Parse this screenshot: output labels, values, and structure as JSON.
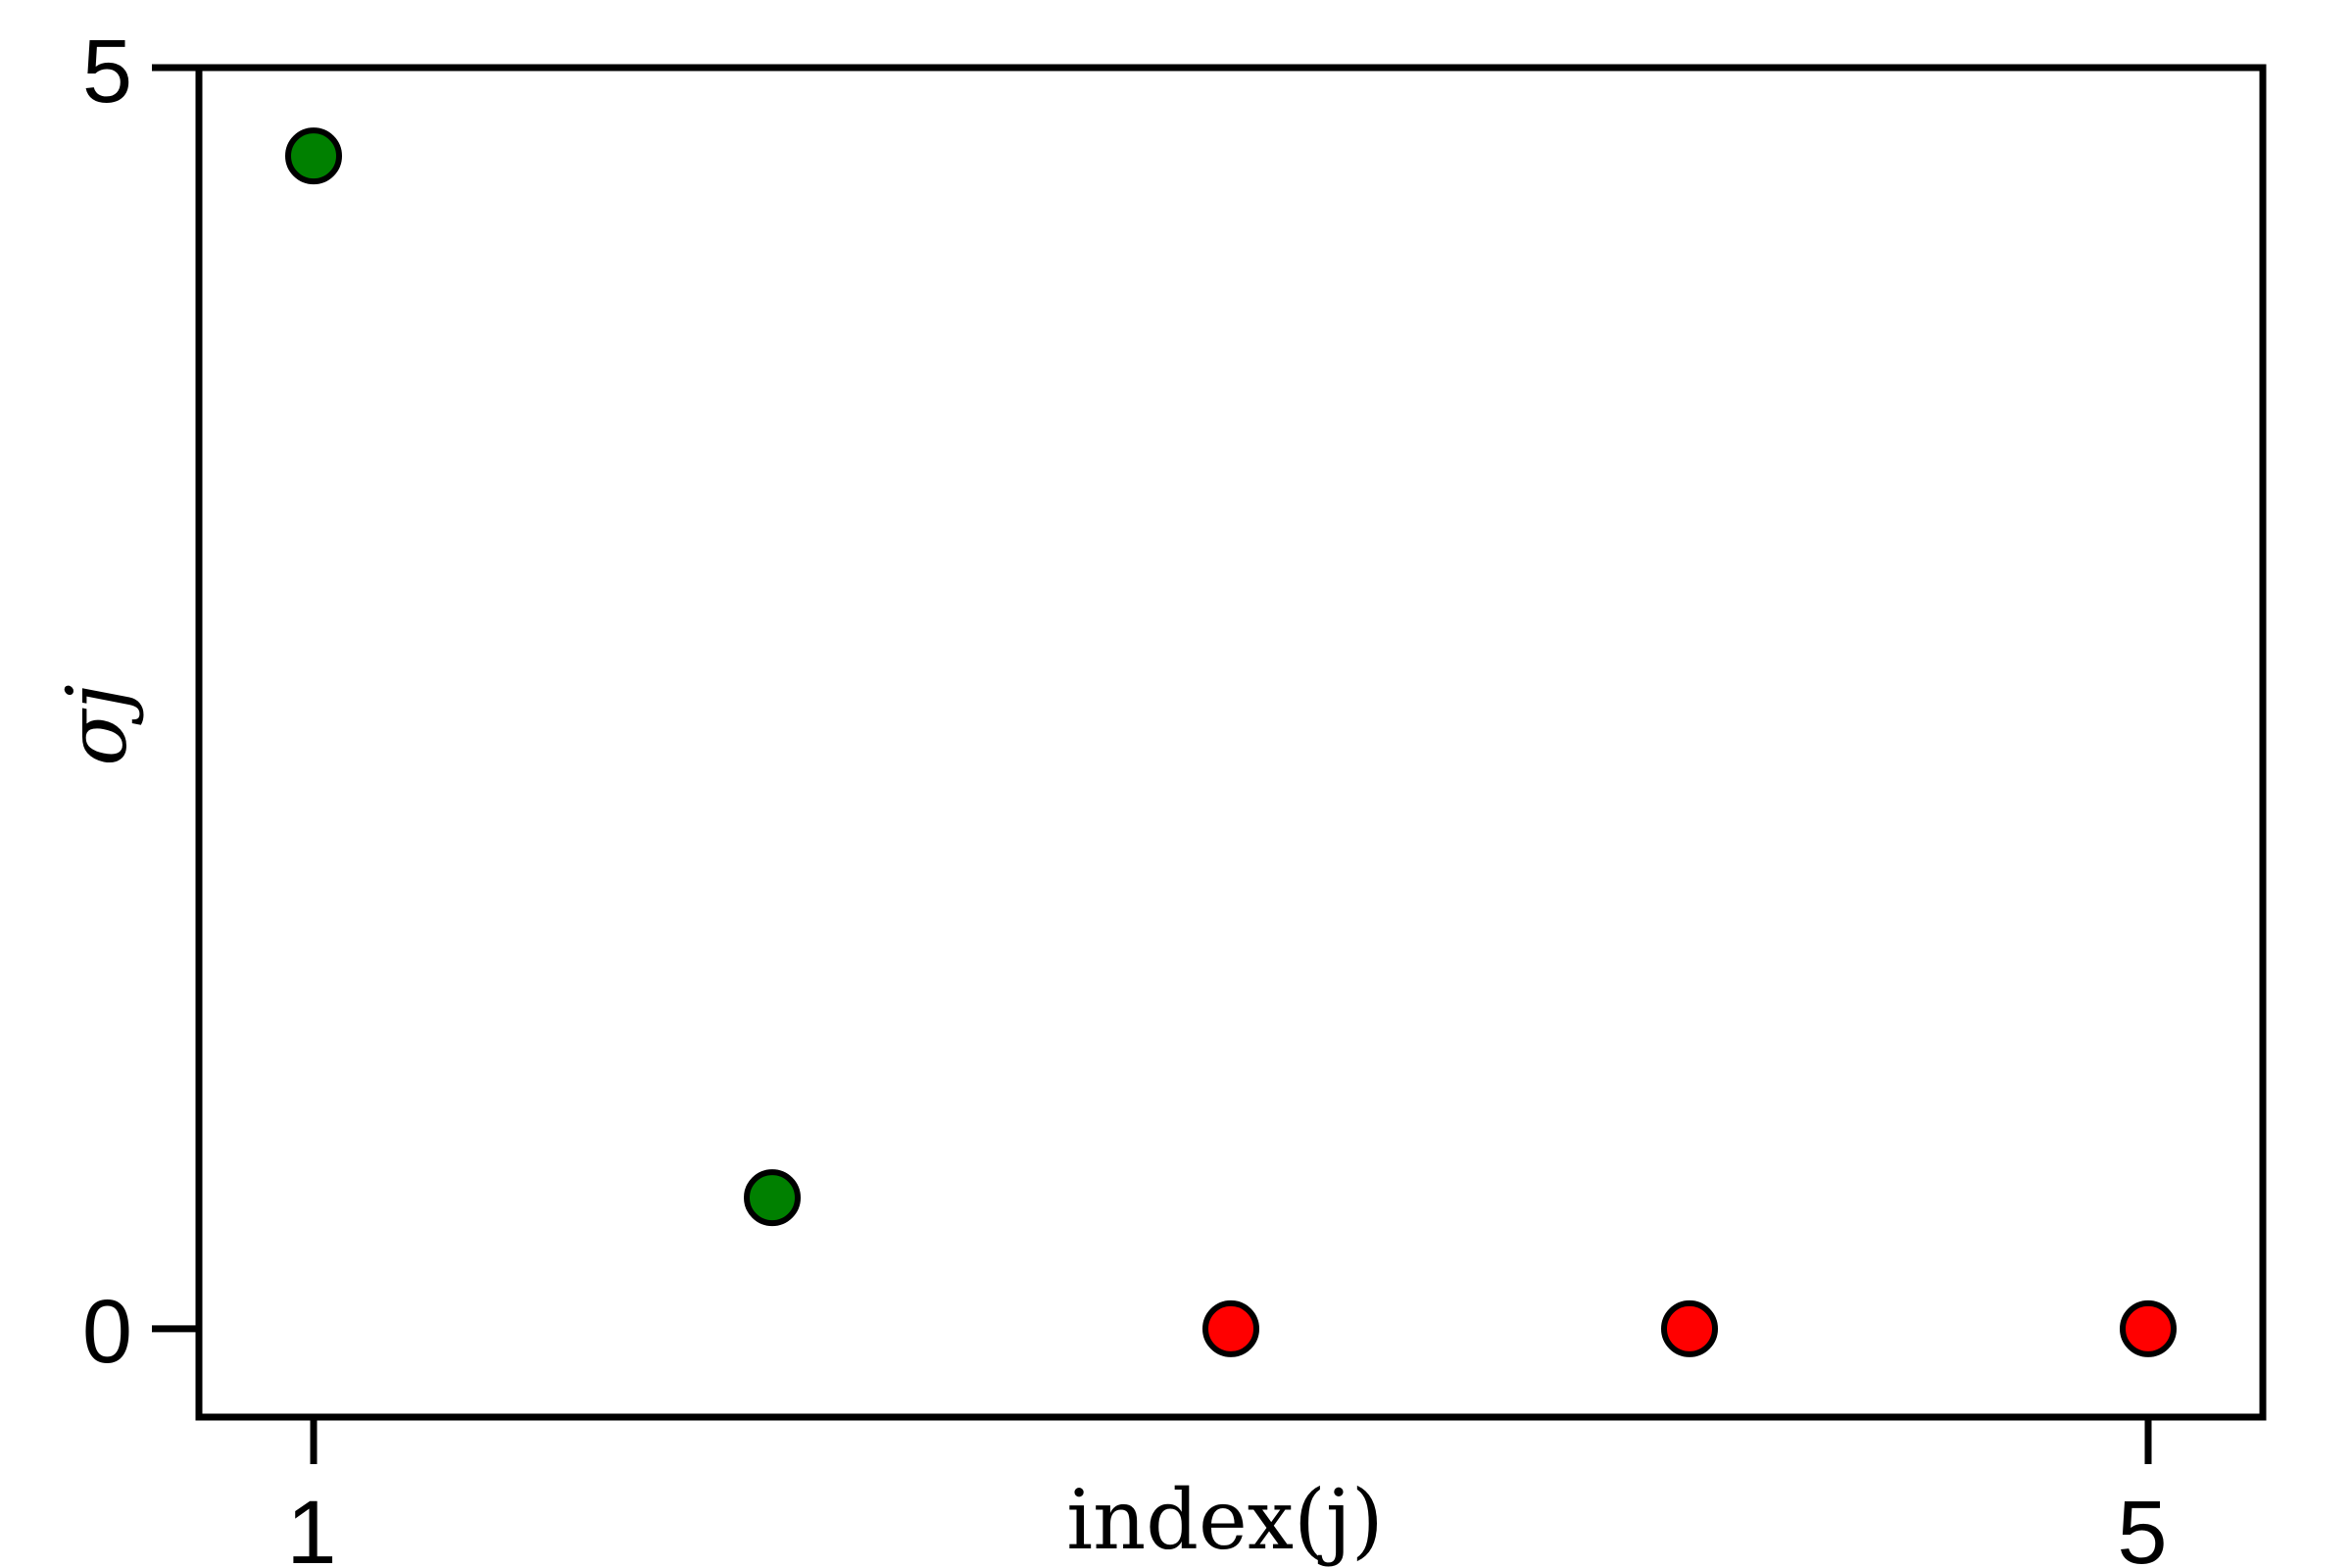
{
  "chart_data": {
    "type": "scatter",
    "title": "",
    "xlabel": "index(j)",
    "ylabel": "σj",
    "xlim": [
      0.75,
      5.25
    ],
    "ylim": [
      -0.35,
      5.0
    ],
    "xticks": [
      "1",
      "5"
    ],
    "yticks": [
      "0",
      "5"
    ],
    "grid": false,
    "legend": "none",
    "points": [
      {
        "x": 1,
        "y": 4.65,
        "color": "#008000"
      },
      {
        "x": 2,
        "y": 0.52,
        "color": "#008000"
      },
      {
        "x": 3,
        "y": 0.0,
        "color": "#ff0000"
      },
      {
        "x": 4,
        "y": 0.0,
        "color": "#ff0000"
      },
      {
        "x": 5,
        "y": 0.0,
        "color": "#ff0000"
      }
    ]
  }
}
